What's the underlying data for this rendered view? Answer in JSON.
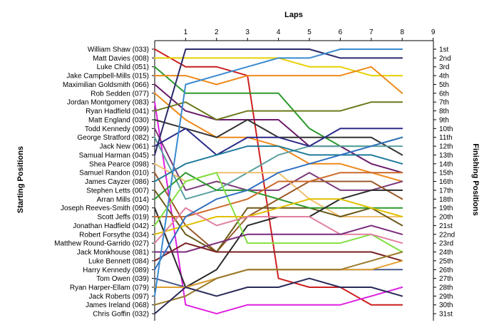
{
  "chart_data": {
    "type": "line",
    "title": "",
    "xlabel": "Laps",
    "ylabel_left": "Starting Positions",
    "ylabel_right": "Finishing Positions",
    "x_ticks": [
      "1",
      "2",
      "3",
      "4",
      "5",
      "6",
      "7",
      "8",
      "9"
    ],
    "finishing_positions": [
      "1st",
      "2nd",
      "3rd",
      "4th",
      "5th",
      "6th",
      "7th",
      "8th",
      "9th",
      "10th",
      "11th",
      "12th",
      "13th",
      "14th",
      "15th",
      "16th",
      "17th",
      "18th",
      "19th",
      "20th",
      "21st",
      "22nd",
      "23rd",
      "24th",
      "25th",
      "26th",
      "27th",
      "28th",
      "29th",
      "30th",
      "31st"
    ],
    "ylim": [
      1,
      31
    ],
    "y_reversed": true,
    "grid": false,
    "series": [
      {
        "name": "William Shaw (033)",
        "color": "#cc1f1f",
        "values": [
          1,
          3,
          3,
          4,
          27,
          28,
          28,
          30,
          30
        ]
      },
      {
        "name": "Matt Davies (008)",
        "color": "#e8d000",
        "values": [
          2,
          2,
          2,
          2,
          2,
          3,
          3,
          4,
          4
        ]
      },
      {
        "name": "Luke Child (051)",
        "color": "#2c9a2c",
        "values": [
          3,
          6,
          6,
          6,
          6,
          10,
          12,
          12,
          11
        ]
      },
      {
        "name": "Jake Campbell-Mills (015)",
        "color": "#ee8a1a",
        "values": [
          4,
          4,
          5,
          4,
          4,
          4,
          4,
          3,
          6
        ]
      },
      {
        "name": "Maximilian Goldsmith (066)",
        "color": "#6a1b6a",
        "values": [
          5,
          8,
          9,
          9,
          9,
          12,
          12,
          14,
          15
        ]
      },
      {
        "name": "Rob Sedden (077)",
        "color": "#ee8a1a",
        "values": [
          6,
          9,
          11,
          11,
          12,
          14,
          14,
          15,
          16
        ]
      },
      {
        "name": "Jordan Montgomery (083)",
        "color": "#e020e0",
        "values": [
          7,
          30,
          31,
          30,
          30,
          30,
          30,
          29,
          28
        ]
      },
      {
        "name": "Ryan Hadfield (041)",
        "color": "#6a7a1a",
        "values": [
          8,
          7,
          9,
          8,
          8,
          8,
          8,
          7,
          7
        ]
      },
      {
        "name": "Matt England (030)",
        "color": "#333333",
        "values": [
          9,
          10,
          11,
          9,
          11,
          11,
          11,
          11,
          13
        ]
      },
      {
        "name": "Todd Kennedy (099)",
        "color": "#7a3a7a",
        "values": [
          10,
          17,
          16,
          17,
          17,
          15,
          17,
          17,
          16
        ]
      },
      {
        "name": "George Stratford (082)",
        "color": "#5aa0a0",
        "values": [
          11,
          18,
          17,
          15,
          13,
          12,
          12,
          12,
          12
        ]
      },
      {
        "name": "Jack New (061)",
        "color": "#2a2a8a",
        "values": [
          12,
          10,
          13,
          11,
          11,
          12,
          10,
          10,
          10
        ]
      },
      {
        "name": "Samual Harman (045)",
        "color": "#2a2a6a",
        "values": [
          13,
          1,
          1,
          1,
          1,
          1,
          2,
          2,
          2
        ]
      },
      {
        "name": "Shea Pearce (098)",
        "color": "#f0c070",
        "values": [
          14,
          16,
          15,
          15,
          15,
          18,
          20,
          20,
          20
        ]
      },
      {
        "name": "Samuel Randon (010)",
        "color": "#9a5a2a",
        "values": [
          15,
          21,
          24,
          20,
          18,
          16,
          16,
          16,
          18
        ]
      },
      {
        "name": "James Cayzer (086)",
        "color": "#1e7a9a",
        "values": [
          16,
          14,
          13,
          12,
          12,
          13,
          13,
          13,
          14
        ]
      },
      {
        "name": "Stephen Letts (007)",
        "color": "#6a5a1a",
        "values": [
          17,
          22,
          24,
          19,
          19,
          19,
          20,
          19,
          21
        ]
      },
      {
        "name": "Arran Mills (014)",
        "color": "#2c9a2c",
        "values": [
          18,
          15,
          17,
          17,
          18,
          19,
          19,
          19,
          19
        ]
      },
      {
        "name": "Joseph Reeves-Smith (090)",
        "color": "#2a2a2a",
        "values": [
          19,
          28,
          26,
          21,
          20,
          20,
          18,
          17,
          17
        ]
      },
      {
        "name": "Scott Jeffs (019)",
        "color": "#cc6a2a",
        "values": [
          20,
          20,
          19,
          18,
          16,
          16,
          15,
          15,
          15
        ]
      },
      {
        "name": "Jonathan Hadfield (042)",
        "color": "#80e040",
        "values": [
          21,
          16,
          15,
          23,
          23,
          23,
          23,
          22,
          24
        ]
      },
      {
        "name": "Robert Forsythe (034)",
        "color": "#e0c000",
        "values": [
          22,
          21,
          20,
          20,
          19,
          18,
          18,
          19,
          20
        ]
      },
      {
        "name": "Matthew Round-Garrido (027)",
        "color": "#e080a0",
        "values": [
          23,
          19,
          21,
          20,
          20,
          20,
          22,
          22,
          23
        ]
      },
      {
        "name": "Jack Monkhouse (081)",
        "color": "#7a2a7a",
        "values": [
          24,
          24,
          23,
          22,
          22,
          22,
          22,
          21,
          22
        ]
      },
      {
        "name": "Luke Bennett (084)",
        "color": "#7a2020",
        "values": [
          25,
          23,
          24,
          24,
          24,
          24,
          24,
          24,
          25
        ]
      },
      {
        "name": "Harry Kennedy (089)",
        "color": "#3070c0",
        "values": [
          26,
          20,
          18,
          17,
          15,
          14,
          13,
          12,
          11
        ]
      },
      {
        "name": "Tom Owen (039)",
        "color": "#4a5a8a",
        "values": [
          27,
          28,
          27,
          26,
          26,
          26,
          26,
          26,
          26
        ]
      },
      {
        "name": "Ryan Harper-Ellam (079)",
        "color": "#e0a030",
        "values": [
          28,
          28,
          27,
          26,
          26,
          26,
          26,
          26,
          25
        ]
      },
      {
        "name": "Jack Roberts (097)",
        "color": "#3a8ad0",
        "values": [
          29,
          5,
          4,
          3,
          2,
          2,
          1,
          1,
          1
        ]
      },
      {
        "name": "James Ireland (068)",
        "color": "#9a7a2a",
        "values": [
          30,
          29,
          27,
          26,
          26,
          26,
          26,
          25,
          24
        ]
      },
      {
        "name": "Chris Goffin (032)",
        "color": "#2a2a5a",
        "values": [
          31,
          28,
          29,
          28,
          28,
          27,
          28,
          28,
          29
        ]
      }
    ]
  }
}
